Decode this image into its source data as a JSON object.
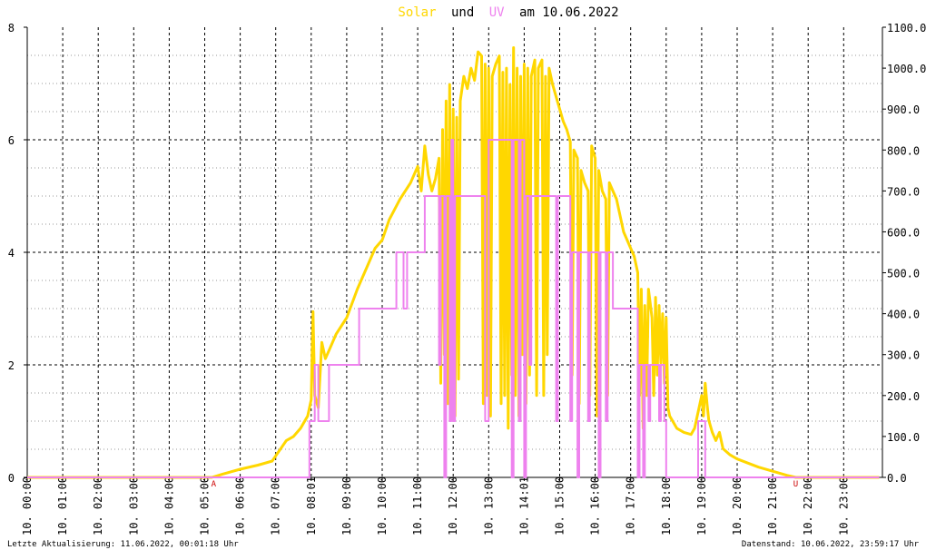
{
  "chart_data": {
    "type": "line",
    "title": {
      "part1": "Solar",
      "part2": "und",
      "part3": "UV",
      "part4": "am 10.06.2022"
    },
    "colors": {
      "solar": "#ffd700",
      "uv": "#ee82ee",
      "title_solar": "#ffd700",
      "title_uv": "#ee82ee",
      "markers": "#cc0000",
      "grid": "#000000"
    },
    "x_unit": "hour",
    "xlim": [
      0,
      24
    ],
    "x_tick_labels": [
      "10. 00:00",
      "10. 01:00",
      "10. 02:00",
      "10. 03:00",
      "10. 04:00",
      "10. 05:00",
      "10. 06:00",
      "10. 07:00",
      "10. 08:01",
      "10. 09:00",
      "10. 10:00",
      "10. 11:00",
      "10. 12:00",
      "10. 13:00",
      "10. 14:01",
      "10. 15:00",
      "10. 16:00",
      "10. 17:00",
      "10. 18:00",
      "10. 19:00",
      "10. 20:00",
      "10. 21:00",
      "10. 22:00",
      "10. 23:00"
    ],
    "y_left": {
      "ylim": [
        0,
        8
      ],
      "ticks": [
        "0",
        "2",
        "4",
        "6",
        "8"
      ]
    },
    "y_right": {
      "ylim": [
        0,
        1100
      ],
      "ticks": [
        "0.0",
        "100.0",
        "200.0",
        "300.0",
        "400.0",
        "500.0",
        "600.0",
        "700.0",
        "800.0",
        "900.0",
        "1000.0",
        "1100.0"
      ]
    },
    "markers": [
      {
        "label": "A",
        "x": 5.25
      },
      {
        "label": "U",
        "x": 21.65
      }
    ],
    "series": [
      {
        "name": "Solar",
        "axis": "right",
        "points": [
          [
            0,
            0
          ],
          [
            5.2,
            0
          ],
          [
            5.5,
            8
          ],
          [
            6.0,
            20
          ],
          [
            6.5,
            30
          ],
          [
            6.9,
            40
          ],
          [
            7.1,
            65
          ],
          [
            7.3,
            90
          ],
          [
            7.5,
            100
          ],
          [
            7.7,
            120
          ],
          [
            7.9,
            150
          ],
          [
            8.0,
            190
          ],
          [
            8.05,
            405
          ],
          [
            8.1,
            200
          ],
          [
            8.2,
            170
          ],
          [
            8.3,
            330
          ],
          [
            8.4,
            290
          ],
          [
            8.5,
            310
          ],
          [
            8.7,
            350
          ],
          [
            9.0,
            390
          ],
          [
            9.3,
            460
          ],
          [
            9.6,
            520
          ],
          [
            9.8,
            560
          ],
          [
            10.0,
            580
          ],
          [
            10.2,
            630
          ],
          [
            10.5,
            680
          ],
          [
            10.8,
            720
          ],
          [
            11.0,
            760
          ],
          [
            11.1,
            700
          ],
          [
            11.2,
            810
          ],
          [
            11.3,
            740
          ],
          [
            11.4,
            700
          ],
          [
            11.5,
            730
          ],
          [
            11.6,
            780
          ],
          [
            11.65,
            230
          ],
          [
            11.7,
            850
          ],
          [
            11.75,
            300
          ],
          [
            11.8,
            920
          ],
          [
            11.85,
            180
          ],
          [
            11.9,
            960
          ],
          [
            11.95,
            250
          ],
          [
            12.0,
            900
          ],
          [
            12.05,
            150
          ],
          [
            12.1,
            880
          ],
          [
            12.15,
            240
          ],
          [
            12.2,
            920
          ],
          [
            12.3,
            980
          ],
          [
            12.4,
            950
          ],
          [
            12.5,
            1000
          ],
          [
            12.6,
            970
          ],
          [
            12.7,
            1040
          ],
          [
            12.8,
            1030
          ],
          [
            12.85,
            180
          ],
          [
            12.9,
            1010
          ],
          [
            12.95,
            200
          ],
          [
            13.0,
            1000
          ],
          [
            13.05,
            150
          ],
          [
            13.1,
            980
          ],
          [
            13.2,
            1010
          ],
          [
            13.3,
            1030
          ],
          [
            13.35,
            180
          ],
          [
            13.4,
            990
          ],
          [
            13.45,
            200
          ],
          [
            13.5,
            1000
          ],
          [
            13.55,
            120
          ],
          [
            13.6,
            960
          ],
          [
            13.65,
            250
          ],
          [
            13.7,
            1050
          ],
          [
            13.75,
            200
          ],
          [
            13.8,
            1000
          ],
          [
            13.85,
            150
          ],
          [
            13.9,
            980
          ],
          [
            13.95,
            300
          ],
          [
            14.0,
            1010
          ],
          [
            14.05,
            180
          ],
          [
            14.1,
            1000
          ],
          [
            14.15,
            250
          ],
          [
            14.2,
            980
          ],
          [
            14.3,
            1020
          ],
          [
            14.35,
            200
          ],
          [
            14.4,
            1000
          ],
          [
            14.5,
            1020
          ],
          [
            14.55,
            200
          ],
          [
            14.6,
            980
          ],
          [
            14.65,
            300
          ],
          [
            14.7,
            1000
          ],
          [
            14.8,
            960
          ],
          [
            14.9,
            930
          ],
          [
            15.0,
            900
          ],
          [
            15.1,
            870
          ],
          [
            15.2,
            850
          ],
          [
            15.3,
            820
          ],
          [
            15.35,
            250
          ],
          [
            15.4,
            800
          ],
          [
            15.5,
            780
          ],
          [
            15.55,
            180
          ],
          [
            15.6,
            750
          ],
          [
            15.7,
            720
          ],
          [
            15.8,
            700
          ],
          [
            15.85,
            200
          ],
          [
            15.9,
            810
          ],
          [
            16.0,
            780
          ],
          [
            16.05,
            150
          ],
          [
            16.1,
            750
          ],
          [
            16.2,
            700
          ],
          [
            16.3,
            680
          ],
          [
            16.35,
            200
          ],
          [
            16.4,
            720
          ],
          [
            16.5,
            700
          ],
          [
            16.6,
            680
          ],
          [
            16.7,
            640
          ],
          [
            16.8,
            600
          ],
          [
            16.9,
            580
          ],
          [
            17.0,
            560
          ],
          [
            17.1,
            540
          ],
          [
            17.2,
            500
          ],
          [
            17.25,
            200
          ],
          [
            17.3,
            460
          ],
          [
            17.35,
            120
          ],
          [
            17.4,
            420
          ],
          [
            17.45,
            200
          ],
          [
            17.5,
            460
          ],
          [
            17.6,
            390
          ],
          [
            17.65,
            200
          ],
          [
            17.7,
            440
          ],
          [
            17.75,
            250
          ],
          [
            17.8,
            420
          ],
          [
            17.85,
            280
          ],
          [
            17.9,
            400
          ],
          [
            17.95,
            230
          ],
          [
            18.0,
            390
          ],
          [
            18.05,
            170
          ],
          [
            18.1,
            150
          ],
          [
            18.3,
            120
          ],
          [
            18.5,
            110
          ],
          [
            18.7,
            105
          ],
          [
            18.8,
            120
          ],
          [
            18.9,
            160
          ],
          [
            19.0,
            200
          ],
          [
            19.05,
            150
          ],
          [
            19.1,
            230
          ],
          [
            19.15,
            180
          ],
          [
            19.2,
            140
          ],
          [
            19.3,
            110
          ],
          [
            19.4,
            90
          ],
          [
            19.5,
            110
          ],
          [
            19.6,
            70
          ],
          [
            19.8,
            55
          ],
          [
            20.0,
            45
          ],
          [
            20.3,
            35
          ],
          [
            20.6,
            25
          ],
          [
            21.0,
            15
          ],
          [
            21.4,
            5
          ],
          [
            21.65,
            0
          ],
          [
            24,
            0
          ]
        ]
      },
      {
        "name": "UV",
        "axis": "left",
        "points": [
          [
            0,
            0
          ],
          [
            7.95,
            0
          ],
          [
            7.95,
            1
          ],
          [
            8.1,
            1
          ],
          [
            8.1,
            2
          ],
          [
            8.2,
            2
          ],
          [
            8.2,
            1
          ],
          [
            8.5,
            1
          ],
          [
            8.5,
            2
          ],
          [
            9.35,
            2
          ],
          [
            9.35,
            3
          ],
          [
            10.4,
            3
          ],
          [
            10.4,
            4
          ],
          [
            10.6,
            4
          ],
          [
            10.6,
            3
          ],
          [
            10.7,
            3
          ],
          [
            10.7,
            4
          ],
          [
            11.1,
            4
          ],
          [
            11.1,
            4
          ],
          [
            11.2,
            4
          ],
          [
            11.2,
            5
          ],
          [
            11.6,
            5
          ],
          [
            11.6,
            2
          ],
          [
            11.65,
            2
          ],
          [
            11.65,
            5
          ],
          [
            11.75,
            5
          ],
          [
            11.75,
            0
          ],
          [
            11.8,
            0
          ],
          [
            11.8,
            5
          ],
          [
            11.9,
            5
          ],
          [
            11.9,
            1
          ],
          [
            11.95,
            1
          ],
          [
            11.95,
            6
          ],
          [
            12.0,
            6
          ],
          [
            12.0,
            1
          ],
          [
            12.05,
            1
          ],
          [
            12.05,
            5
          ],
          [
            12.9,
            5
          ],
          [
            12.9,
            1
          ],
          [
            13.0,
            1
          ],
          [
            13.0,
            6
          ],
          [
            13.65,
            6
          ],
          [
            13.65,
            0
          ],
          [
            13.7,
            0
          ],
          [
            13.7,
            6
          ],
          [
            13.85,
            6
          ],
          [
            13.85,
            1
          ],
          [
            13.9,
            1
          ],
          [
            13.9,
            6
          ],
          [
            14.0,
            6
          ],
          [
            14.0,
            0
          ],
          [
            14.05,
            0
          ],
          [
            14.05,
            5
          ],
          [
            14.15,
            5
          ],
          [
            14.15,
            2
          ],
          [
            14.2,
            2
          ],
          [
            14.2,
            5
          ],
          [
            14.9,
            5
          ],
          [
            14.9,
            1
          ],
          [
            14.95,
            1
          ],
          [
            14.95,
            5
          ],
          [
            15.3,
            5
          ],
          [
            15.3,
            1
          ],
          [
            15.35,
            1
          ],
          [
            15.35,
            4
          ],
          [
            15.5,
            4
          ],
          [
            15.5,
            0
          ],
          [
            15.55,
            0
          ],
          [
            15.55,
            4
          ],
          [
            15.8,
            4
          ],
          [
            15.8,
            1
          ],
          [
            15.85,
            1
          ],
          [
            15.85,
            4
          ],
          [
            16.1,
            4
          ],
          [
            16.1,
            0
          ],
          [
            16.15,
            0
          ],
          [
            16.15,
            4
          ],
          [
            16.3,
            4
          ],
          [
            16.3,
            1
          ],
          [
            16.35,
            1
          ],
          [
            16.35,
            4
          ],
          [
            16.5,
            4
          ],
          [
            16.5,
            3
          ],
          [
            17.2,
            3
          ],
          [
            17.2,
            0
          ],
          [
            17.25,
            0
          ],
          [
            17.25,
            2
          ],
          [
            17.35,
            2
          ],
          [
            17.35,
            0
          ],
          [
            17.4,
            0
          ],
          [
            17.4,
            2
          ],
          [
            17.5,
            2
          ],
          [
            17.5,
            1
          ],
          [
            17.55,
            1
          ],
          [
            17.55,
            2
          ],
          [
            17.8,
            2
          ],
          [
            17.8,
            1
          ],
          [
            17.85,
            1
          ],
          [
            17.85,
            2
          ],
          [
            17.95,
            2
          ],
          [
            17.95,
            1
          ],
          [
            18.0,
            1
          ],
          [
            18.0,
            0
          ],
          [
            18.9,
            0
          ],
          [
            18.9,
            1
          ],
          [
            19.1,
            1
          ],
          [
            19.1,
            0
          ],
          [
            24,
            0
          ]
        ]
      }
    ]
  },
  "footer": {
    "left": "Letzte Aktualisierung: 11.06.2022, 00:01:18 Uhr",
    "right": "Datenstand: 10.06.2022, 23:59:17 Uhr"
  }
}
